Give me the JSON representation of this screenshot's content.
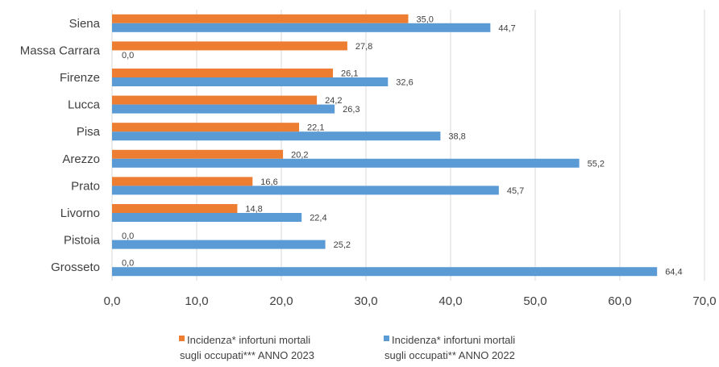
{
  "chart_data": {
    "type": "bar",
    "orientation": "horizontal",
    "categories": [
      "Siena",
      "Massa Carrara",
      "Firenze",
      "Lucca",
      "Pisa",
      "Arezzo",
      "Prato",
      "Livorno",
      "Pistoia",
      "Grosseto"
    ],
    "series": [
      {
        "name": "Incidenza* infortuni mortali sugli occupati*** ANNO 2023",
        "legend_lines": [
          "Incidenza* infortuni mortali",
          "sugli occupati*** ANNO 2023"
        ],
        "color": "#ED7D31",
        "values": [
          35.0,
          27.8,
          26.1,
          24.2,
          22.1,
          20.2,
          16.6,
          14.8,
          0.0,
          0.0
        ],
        "labels": [
          "35,0",
          "27,8",
          "26,1",
          "24,2",
          "22,1",
          "20,2",
          "16,6",
          "14,8",
          "0,0",
          "0,0"
        ]
      },
      {
        "name": "Incidenza* infortuni mortali sugli occupati** ANNO 2022",
        "legend_lines": [
          "Incidenza* infortuni mortali",
          "sugli occupati** ANNO 2022"
        ],
        "color": "#5B9BD5",
        "values": [
          44.7,
          0.0,
          32.6,
          26.3,
          38.8,
          55.2,
          45.7,
          22.4,
          25.2,
          64.4
        ],
        "labels": [
          "44,7",
          "0,0",
          "32,6",
          "26,3",
          "38,8",
          "55,2",
          "45,7",
          "22,4",
          "25,2",
          "64,4"
        ]
      }
    ],
    "xlim": [
      0,
      70
    ],
    "xticks": [
      0,
      10,
      20,
      30,
      40,
      50,
      60,
      70
    ],
    "xtick_labels": [
      "0,0",
      "10,0",
      "20,0",
      "30,0",
      "40,0",
      "50,0",
      "60,0",
      "70,0"
    ],
    "grid": "vertical",
    "legend_position": "bottom",
    "title": "",
    "xlabel": "",
    "ylabel": ""
  }
}
